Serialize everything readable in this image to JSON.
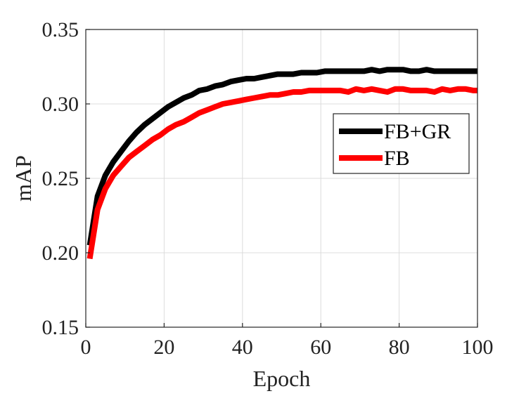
{
  "chart_data": {
    "type": "line",
    "title": "",
    "xlabel": "Epoch",
    "ylabel": "mAP",
    "xlim": [
      0,
      100
    ],
    "ylim": [
      0.15,
      0.35
    ],
    "xticks": [
      0,
      20,
      40,
      60,
      80,
      100
    ],
    "xtick_labels": [
      "0",
      "20",
      "40",
      "60",
      "80",
      "100"
    ],
    "yticks": [
      0.15,
      0.2,
      0.25,
      0.3,
      0.35
    ],
    "ytick_labels": [
      "0.15",
      "0.20",
      "0.25",
      "0.30",
      "0.35"
    ],
    "grid": true,
    "legend_position": "right",
    "x": [
      1,
      3,
      5,
      7,
      9,
      11,
      13,
      15,
      17,
      19,
      21,
      23,
      25,
      27,
      29,
      31,
      33,
      35,
      37,
      39,
      41,
      43,
      45,
      47,
      49,
      51,
      53,
      55,
      57,
      59,
      61,
      63,
      65,
      67,
      69,
      71,
      73,
      75,
      77,
      79,
      81,
      83,
      85,
      87,
      89,
      91,
      93,
      95,
      97,
      99,
      100
    ],
    "series": [
      {
        "name": "FB+GR",
        "color": "#000000",
        "values": [
          0.205,
          0.238,
          0.252,
          0.261,
          0.268,
          0.275,
          0.281,
          0.286,
          0.29,
          0.294,
          0.298,
          0.301,
          0.304,
          0.306,
          0.309,
          0.31,
          0.312,
          0.313,
          0.315,
          0.316,
          0.317,
          0.317,
          0.318,
          0.319,
          0.32,
          0.32,
          0.32,
          0.321,
          0.321,
          0.321,
          0.322,
          0.322,
          0.322,
          0.322,
          0.322,
          0.322,
          0.323,
          0.322,
          0.323,
          0.323,
          0.323,
          0.322,
          0.322,
          0.323,
          0.322,
          0.322,
          0.322,
          0.322,
          0.322,
          0.322,
          0.322
        ]
      },
      {
        "name": "FB",
        "color": "#ff0000",
        "values": [
          0.196,
          0.229,
          0.243,
          0.252,
          0.258,
          0.264,
          0.268,
          0.272,
          0.276,
          0.279,
          0.283,
          0.286,
          0.288,
          0.291,
          0.294,
          0.296,
          0.298,
          0.3,
          0.301,
          0.302,
          0.303,
          0.304,
          0.305,
          0.306,
          0.306,
          0.307,
          0.308,
          0.308,
          0.309,
          0.309,
          0.309,
          0.309,
          0.309,
          0.308,
          0.31,
          0.309,
          0.31,
          0.309,
          0.308,
          0.31,
          0.31,
          0.309,
          0.309,
          0.309,
          0.308,
          0.31,
          0.309,
          0.31,
          0.31,
          0.309,
          0.309
        ]
      }
    ]
  }
}
